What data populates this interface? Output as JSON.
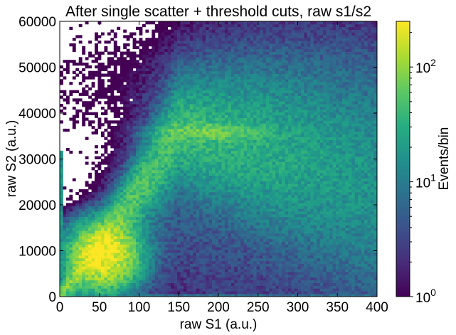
{
  "chart_data": {
    "type": "heatmap",
    "title": "After single scatter + threshold cuts, raw s1/s2",
    "xlabel": "raw S1 (a.u.)",
    "ylabel": "raw S2 (a.u.)",
    "xlim": [
      0,
      400
    ],
    "ylim": [
      0,
      60000
    ],
    "x_ticks": [
      0,
      50,
      100,
      150,
      200,
      250,
      300,
      350,
      400
    ],
    "x_tick_labels": [
      "0",
      "50",
      "100",
      "150",
      "200",
      "250",
      "300",
      "350",
      "400"
    ],
    "y_ticks": [
      0,
      10000,
      20000,
      30000,
      40000,
      50000,
      60000
    ],
    "y_tick_labels": [
      "0",
      "10000",
      "20000",
      "30000",
      "40000",
      "50000",
      "60000"
    ],
    "bins": {
      "x": 100,
      "y": 100
    },
    "colormap": "viridis",
    "color_scale": "log",
    "colorbar": {
      "label": "Events/bin",
      "range": [
        1,
        250
      ],
      "ticks": [
        1,
        10,
        100
      ],
      "tick_labels": [
        {
          "base": "10",
          "exp": "0"
        },
        {
          "base": "10",
          "exp": "1"
        },
        {
          "base": "10",
          "exp": "2"
        }
      ]
    },
    "features": [
      {
        "description": "dense core",
        "x": 55,
        "y": 9000,
        "counts": 200
      },
      {
        "description": "main band",
        "x_range": [
          20,
          300
        ],
        "y_range": [
          4000,
          36000
        ]
      },
      {
        "description": "plateau band",
        "x_range": [
          150,
          250
        ],
        "y": 36000,
        "counts": 60
      },
      {
        "description": "edge column at x=0",
        "x": 0,
        "y_range": [
          0,
          32000
        ]
      },
      {
        "description": "edge row at y=0",
        "x_range": [
          0,
          400
        ],
        "y": 0
      }
    ],
    "grid": false
  }
}
